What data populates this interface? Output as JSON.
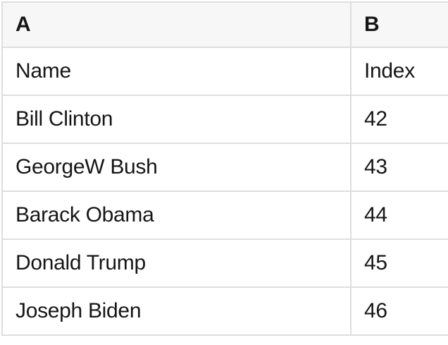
{
  "table": {
    "columns": [
      {
        "label": "A"
      },
      {
        "label": "B"
      }
    ],
    "rows": [
      [
        "Name",
        "Index"
      ],
      [
        "Bill Clinton",
        "42"
      ],
      [
        "GeorgeW Bush",
        "43"
      ],
      [
        "Barack Obama",
        "44"
      ],
      [
        "Donald Trump",
        "45"
      ],
      [
        "Joseph Biden",
        "46"
      ]
    ]
  },
  "colors": {
    "background": "#ffffff",
    "header_background": "#f7f7f7",
    "grid_border": "#dedede",
    "text": "#161616"
  }
}
